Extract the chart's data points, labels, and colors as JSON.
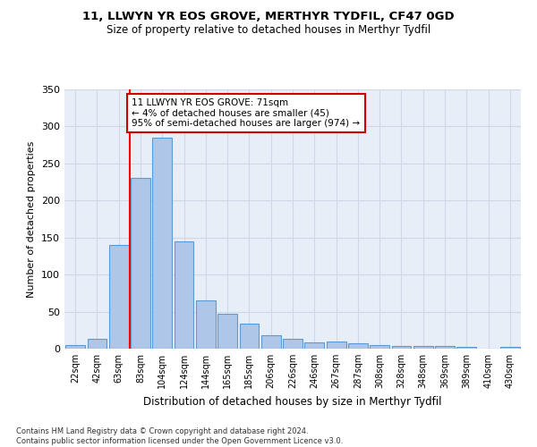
{
  "title": "11, LLWYN YR EOS GROVE, MERTHYR TYDFIL, CF47 0GD",
  "subtitle": "Size of property relative to detached houses in Merthyr Tydfil",
  "xlabel": "Distribution of detached houses by size in Merthyr Tydfil",
  "ylabel": "Number of detached properties",
  "categories": [
    "22sqm",
    "42sqm",
    "63sqm",
    "83sqm",
    "104sqm",
    "124sqm",
    "144sqm",
    "165sqm",
    "185sqm",
    "206sqm",
    "226sqm",
    "246sqm",
    "267sqm",
    "287sqm",
    "308sqm",
    "328sqm",
    "348sqm",
    "369sqm",
    "389sqm",
    "410sqm",
    "430sqm"
  ],
  "values": [
    5,
    13,
    140,
    230,
    285,
    145,
    65,
    47,
    34,
    18,
    13,
    8,
    10,
    7,
    5,
    4,
    4,
    4,
    3,
    0,
    2
  ],
  "bar_color": "#aec6e8",
  "bar_edge_color": "#5b9bd5",
  "red_line_x": 2.5,
  "annotation_text": "11 LLWYN YR EOS GROVE: 71sqm\n← 4% of detached houses are smaller (45)\n95% of semi-detached houses are larger (974) →",
  "annotation_box_color": "#ffffff",
  "annotation_box_edge": "#cc0000",
  "grid_color": "#d0d8e8",
  "background_color": "#e8eef8",
  "footer": "Contains HM Land Registry data © Crown copyright and database right 2024.\nContains public sector information licensed under the Open Government Licence v3.0.",
  "ylim": [
    0,
    350
  ],
  "yticks": [
    0,
    50,
    100,
    150,
    200,
    250,
    300,
    350
  ]
}
